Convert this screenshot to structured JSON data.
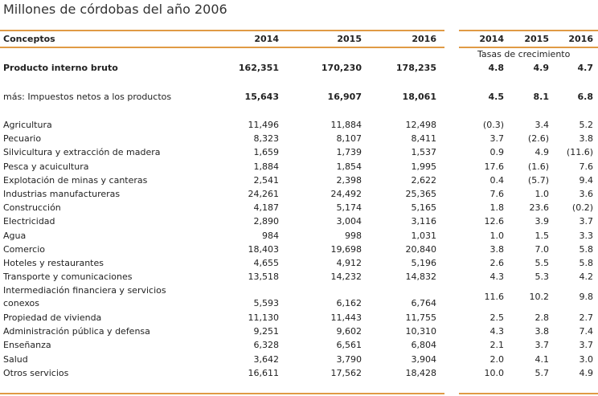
{
  "title": "Millones de córdobas del año 2006",
  "header": {
    "concept": "Conceptos",
    "years": [
      "2014",
      "2015",
      "2016"
    ],
    "rate_years": [
      "2014",
      "2015",
      "2016"
    ],
    "rate_caption": "Tasas de crecimiento"
  },
  "rows": [
    {
      "concept": "Producto interno bruto",
      "values": [
        "162,351",
        "170,230",
        "178,235"
      ],
      "rates": [
        "4.8",
        "4.9",
        "4.7"
      ]
    },
    {
      "concept": "más: Impuestos netos a los productos",
      "values": [
        "15,643",
        "16,907",
        "18,061"
      ],
      "rates": [
        "4.5",
        "8.1",
        "6.8"
      ]
    },
    {
      "concept": "Agricultura",
      "values": [
        "11,496",
        "11,884",
        "12,498"
      ],
      "rates": [
        "(0.3)",
        "3.4",
        "5.2"
      ]
    },
    {
      "concept": "Pecuario",
      "values": [
        "8,323",
        "8,107",
        "8,411"
      ],
      "rates": [
        "3.7",
        "(2.6)",
        "3.8"
      ]
    },
    {
      "concept": "Silvicultura y extracción de madera",
      "values": [
        "1,659",
        "1,739",
        "1,537"
      ],
      "rates": [
        "0.9",
        "4.9",
        "(11.6)"
      ]
    },
    {
      "concept": "Pesca y acuicultura",
      "values": [
        "1,884",
        "1,854",
        "1,995"
      ],
      "rates": [
        "17.6",
        "(1.6)",
        "7.6"
      ]
    },
    {
      "concept": "Explotación de minas y canteras",
      "values": [
        "2,541",
        "2,398",
        "2,622"
      ],
      "rates": [
        "0.4",
        "(5.7)",
        "9.4"
      ]
    },
    {
      "concept": "Industrias manufactureras",
      "values": [
        "24,261",
        "24,492",
        "25,365"
      ],
      "rates": [
        "7.6",
        "1.0",
        "3.6"
      ]
    },
    {
      "concept": "Construcción",
      "values": [
        "4,187",
        "5,174",
        "5,165"
      ],
      "rates": [
        "1.8",
        "23.6",
        "(0.2)"
      ]
    },
    {
      "concept": "Electricidad",
      "values": [
        "2,890",
        "3,004",
        "3,116"
      ],
      "rates": [
        "12.6",
        "3.9",
        "3.7"
      ]
    },
    {
      "concept": "Agua",
      "values": [
        "984",
        "998",
        "1,031"
      ],
      "rates": [
        "1.0",
        "1.5",
        "3.3"
      ]
    },
    {
      "concept": "Comercio",
      "values": [
        "18,403",
        "19,698",
        "20,840"
      ],
      "rates": [
        "3.8",
        "7.0",
        "5.8"
      ]
    },
    {
      "concept": "Hoteles y restaurantes",
      "values": [
        "4,655",
        "4,912",
        "5,196"
      ],
      "rates": [
        "2.6",
        "5.5",
        "5.8"
      ]
    },
    {
      "concept": "Transporte y comunicaciones",
      "values": [
        "13,518",
        "14,232",
        "14,832"
      ],
      "rates": [
        "4.3",
        "5.3",
        "4.2"
      ]
    },
    {
      "concept": "Intermediación financiera y servicios conexos",
      "values": [
        "5,593",
        "6,162",
        "6,764"
      ],
      "rates": [
        "11.6",
        "10.2",
        "9.8"
      ]
    },
    {
      "concept": "Propiedad de vivienda",
      "values": [
        "11,130",
        "11,443",
        "11,755"
      ],
      "rates": [
        "2.5",
        "2.8",
        "2.7"
      ]
    },
    {
      "concept": "Administración pública y defensa",
      "values": [
        "9,251",
        "9,602",
        "10,310"
      ],
      "rates": [
        "4.3",
        "3.8",
        "7.4"
      ]
    },
    {
      "concept": "Enseñanza",
      "values": [
        "6,328",
        "6,561",
        "6,804"
      ],
      "rates": [
        "2.1",
        "3.7",
        "3.7"
      ]
    },
    {
      "concept": "Salud",
      "values": [
        "3,642",
        "3,790",
        "3,904"
      ],
      "rates": [
        "2.0",
        "4.1",
        "3.0"
      ]
    },
    {
      "concept": "Otros servicios",
      "values": [
        "16,611",
        "17,562",
        "18,428"
      ],
      "rates": [
        "10.0",
        "5.7",
        "4.9"
      ]
    }
  ]
}
